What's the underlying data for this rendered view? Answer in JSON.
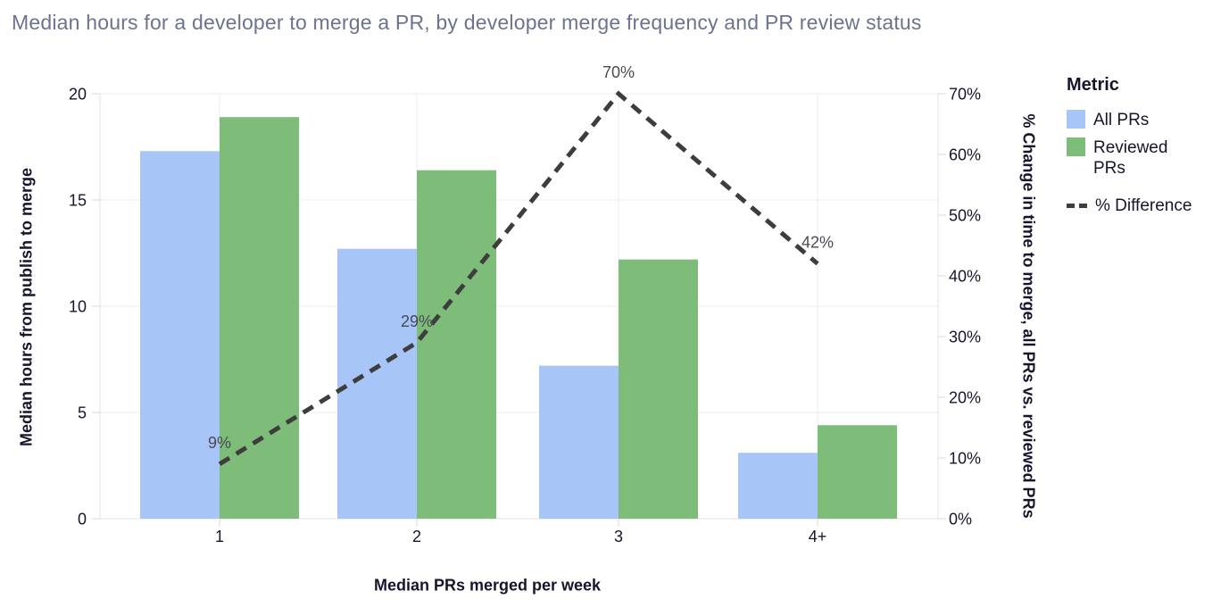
{
  "title": "Median hours for a developer to merge a PR, by developer merge frequency and PR review status",
  "chart_data": {
    "type": "bar",
    "subtype": "grouped bars with secondary-axis dashed line",
    "categories": [
      "1",
      "2",
      "3",
      "4+"
    ],
    "series": [
      {
        "name": "All PRs",
        "type": "bar",
        "axis": "left",
        "color": "#a8c5f8",
        "values": [
          17.3,
          12.7,
          7.2,
          3.1
        ]
      },
      {
        "name": "Reviewed PRs",
        "type": "bar",
        "axis": "left",
        "color": "#7ebc7a",
        "values": [
          18.9,
          16.4,
          12.2,
          4.4
        ]
      },
      {
        "name": "% Difference",
        "type": "line",
        "axis": "right",
        "color": "#3d3d3d",
        "dashed": true,
        "values": [
          9,
          29,
          70,
          42
        ],
        "point_labels": [
          "9%",
          "29%",
          "70%",
          "42%"
        ]
      }
    ],
    "x_axis": {
      "label": "Median PRs merged per week",
      "tick_labels": [
        "1",
        "2",
        "3",
        "4+"
      ]
    },
    "left_axis": {
      "label": "Median hours from publish to merge",
      "range": [
        0,
        20
      ],
      "ticks": [
        0,
        5,
        10,
        15,
        20
      ],
      "tick_labels": [
        "0",
        "5",
        "10",
        "15",
        "20"
      ]
    },
    "right_axis": {
      "label": "% Change in time to merge, all PRs vs. reviewed PRs",
      "range": [
        0,
        70
      ],
      "ticks": [
        0,
        10,
        20,
        30,
        40,
        50,
        60,
        70
      ],
      "tick_labels": [
        "0%",
        "10%",
        "20%",
        "30%",
        "40%",
        "50%",
        "60%",
        "70%"
      ]
    },
    "grid": true,
    "legend": {
      "title": "Metric",
      "position": "right"
    }
  }
}
